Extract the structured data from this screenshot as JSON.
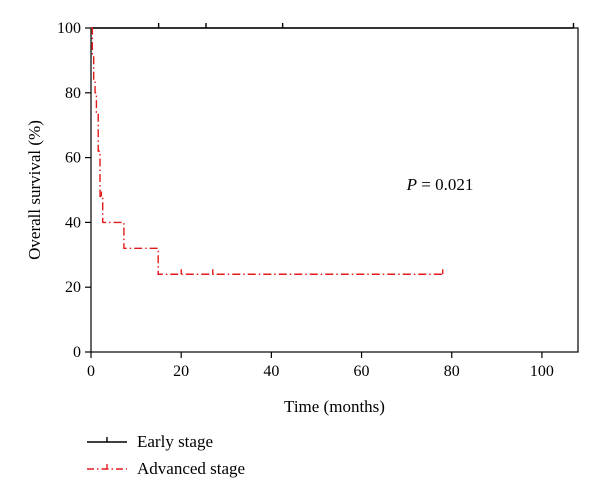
{
  "chart_data": {
    "type": "line",
    "subtype": "kaplan-meier",
    "xlabel": "Time (months)",
    "ylabel": "Overall survival (%)",
    "xlim": [
      0,
      108
    ],
    "ylim": [
      0,
      100
    ],
    "xticks": [
      0,
      20,
      40,
      60,
      80,
      100
    ],
    "yticks": [
      0,
      20,
      40,
      60,
      80,
      100
    ],
    "grid": false,
    "legend_position": "bottom-left",
    "annotation": {
      "italic": "P",
      "text": " = 0.021",
      "x": 70,
      "y": 50
    },
    "series": [
      {
        "name": "Early stage",
        "color": "#000000",
        "line_style": "solid",
        "x": [
          0,
          107
        ],
        "y": [
          100,
          100
        ],
        "censor_x": [
          15,
          25.5,
          42.5,
          107
        ]
      },
      {
        "name": "Advanced stage",
        "color": "#e31a1c",
        "line_style": "dashdot",
        "x": [
          0,
          0.3,
          0.6,
          0.9,
          1.2,
          1.6,
          2.0,
          2.6,
          7.3,
          14.9,
          78
        ],
        "y": [
          100,
          92,
          84,
          80,
          74,
          62,
          48,
          40,
          32,
          24,
          24
        ],
        "censor_x": [
          2.3,
          20,
          27,
          78
        ]
      }
    ]
  }
}
